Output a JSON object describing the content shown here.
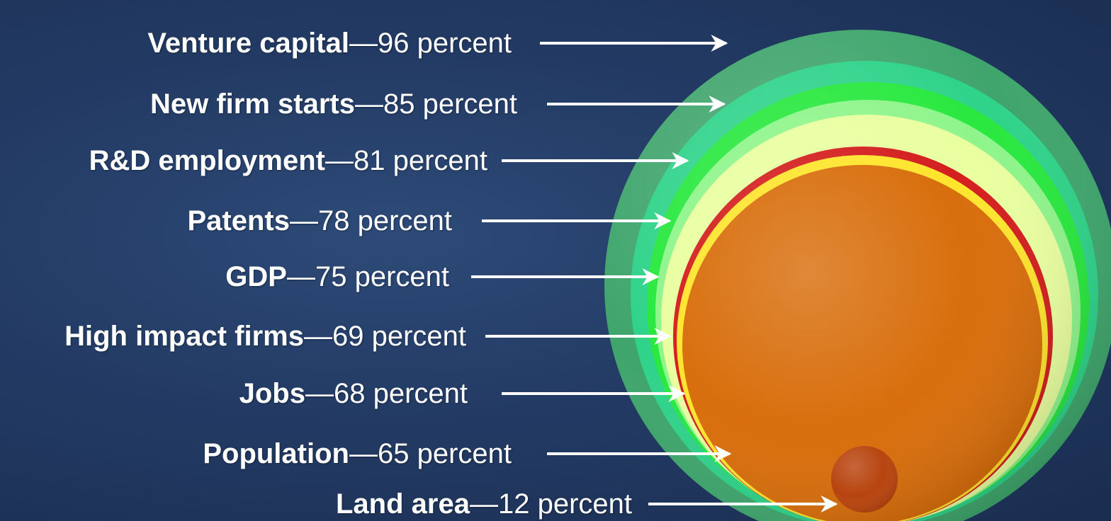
{
  "colors": {
    "background": "#233b64",
    "venture_capital": "#3fa56c",
    "new_firm_starts": "#2fd38a",
    "rd_employment": "#29e83f",
    "patents": "#8ff58b",
    "gdp": "#e9ffa0",
    "high_impact_firms": "#d41f1f",
    "jobs": "#ffe52e",
    "population": "#d86e0c",
    "land_area": "#b8440f",
    "arrow": "#ffffff",
    "text": "#ffffff"
  },
  "chart_data": {
    "type": "nested-bubble",
    "unit": "percent",
    "dash": "—",
    "series": [
      {
        "label": "Venture capital",
        "value": 96
      },
      {
        "label": "New firm starts",
        "value": 85
      },
      {
        "label": "R&D employment",
        "value": 81
      },
      {
        "label": "Patents",
        "value": 78
      },
      {
        "label": "GDP",
        "value": 75
      },
      {
        "label": "High impact firms",
        "value": 69
      },
      {
        "label": "Jobs",
        "value": 68
      },
      {
        "label": "Population",
        "value": 65
      },
      {
        "label": "Land area",
        "value": 12
      }
    ]
  }
}
